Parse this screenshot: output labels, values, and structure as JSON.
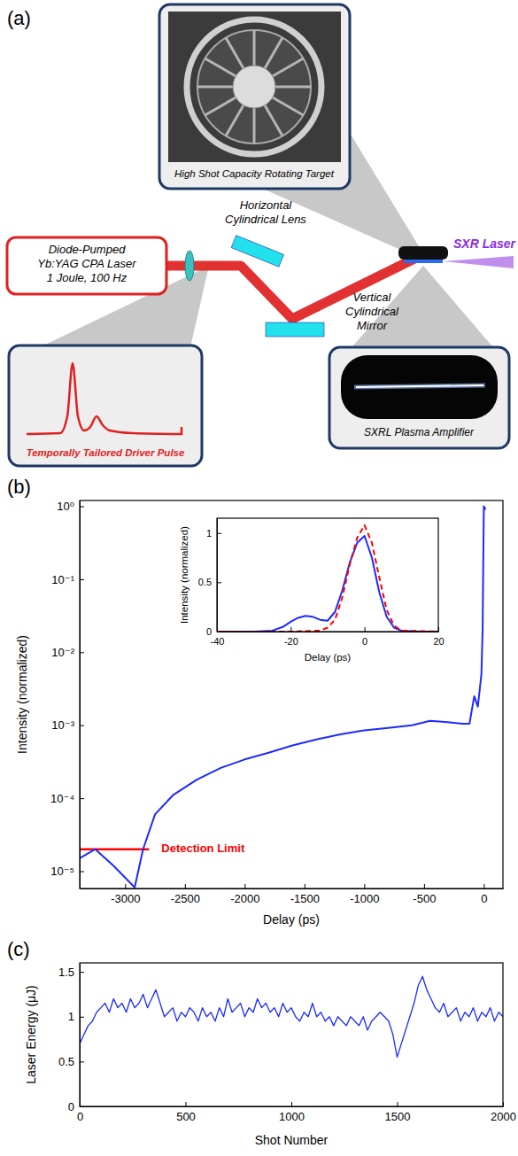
{
  "diagram": {
    "panel": "(a)",
    "laser": [
      "Diode-Pumped",
      "Yb:YAG CPA Laser",
      "1 Joule, 100 Hz"
    ],
    "lens": [
      "Horizontal",
      "Cylindrical Lens"
    ],
    "mirror": [
      "Vertical",
      "Cylindrical",
      "Mirror"
    ],
    "target": "High Shot Capacity Rotating Target",
    "output": "SXR Laser",
    "plasma": "SXRL Plasma Amplifier",
    "pulse": "Temporally Tailored Driver Pulse"
  },
  "chart_data": [
    {
      "type": "line",
      "panel": "(b)",
      "x_label": "Delay (ps)",
      "y_label": "Intensity (normalized)",
      "log": "y",
      "xlim": [
        -3380,
        160
      ],
      "xticks": [
        -3000,
        -2500,
        -2000,
        -1500,
        -1000,
        -500,
        0
      ],
      "ylim": [
        5.8e-06,
        1.2
      ],
      "yticks": [
        {
          "value": 1e-05,
          "label": "10⁻⁵"
        },
        {
          "value": 0.0001,
          "label": "10⁻⁴"
        },
        {
          "value": 0.001,
          "label": "10⁻³"
        },
        {
          "value": 0.01,
          "label": "10⁻²"
        },
        {
          "value": 0.1,
          "label": "10⁻¹"
        },
        {
          "value": 1,
          "label": "10⁰"
        }
      ],
      "series": [
        {
          "color": "#1c2bff",
          "x": [
            -3380,
            -3250,
            -3100,
            -2920,
            -2850,
            -2750,
            -2600,
            -2400,
            -2200,
            -2000,
            -1800,
            -1600,
            -1400,
            -1200,
            -1000,
            -800,
            -600,
            -450,
            -300,
            -180,
            -120,
            -80,
            -50,
            -20,
            -10,
            0,
            15
          ],
          "values": [
            1.5e-05,
            2e-05,
            1.2e-05,
            6e-06,
            2e-05,
            6e-05,
            0.00011,
            0.00018,
            0.00026,
            0.00034,
            0.00042,
            0.00053,
            0.00064,
            0.00075,
            0.00085,
            0.00092,
            0.001,
            0.00115,
            0.0011,
            0.00105,
            0.00105,
            0.0025,
            0.0018,
            0.005,
            0.02,
            1,
            0.9
          ]
        }
      ],
      "annotations": [
        {
          "text": "Detection Limit",
          "x": [
            -3380,
            -2800
          ],
          "y": 2e-05,
          "color": "#ff0000"
        }
      ]
    },
    {
      "type": "line",
      "x_label": "Delay (ps)",
      "y_label": "Intensity (normalized)",
      "xlim": [
        -40,
        20
      ],
      "xticks": [
        -40,
        -20,
        0,
        20
      ],
      "ylim": [
        0,
        1.15
      ],
      "yticks": [
        0,
        0.5,
        1
      ],
      "series": [
        {
          "color": "#1c2bff",
          "x": [
            -40,
            -30,
            -25,
            -22,
            -20,
            -18,
            -16,
            -14,
            -12,
            -10,
            -8,
            -6,
            -4,
            -2,
            0,
            2,
            4,
            6,
            8,
            10,
            15,
            20
          ],
          "values": [
            0,
            0,
            0.01,
            0.05,
            0.1,
            0.14,
            0.16,
            0.15,
            0.12,
            0.11,
            0.2,
            0.42,
            0.7,
            0.9,
            0.97,
            0.75,
            0.4,
            0.15,
            0.04,
            0.01,
            0,
            0
          ]
        },
        {
          "color": "#ff0000",
          "line_style": "dashed",
          "x": [
            -40,
            -20,
            -12,
            -10,
            -8,
            -6,
            -4,
            -2,
            0,
            2,
            4,
            6,
            8,
            10,
            20
          ],
          "values": [
            0,
            0,
            0.01,
            0.04,
            0.12,
            0.35,
            0.68,
            0.95,
            1.08,
            0.9,
            0.55,
            0.22,
            0.06,
            0.01,
            0
          ]
        }
      ]
    },
    {
      "type": "line",
      "panel": "(c)",
      "x_label": "Shot Number",
      "y_label": "Laser Energy (μJ)",
      "xlim": [
        0,
        2000
      ],
      "xticks": [
        0,
        500,
        1000,
        1500,
        2000
      ],
      "ylim": [
        0,
        1.6
      ],
      "yticks": [
        0,
        0.5,
        1,
        1.5
      ],
      "series": [
        {
          "color": "#1c2bff",
          "x": [
            0,
            20,
            40,
            60,
            80,
            100,
            120,
            140,
            160,
            180,
            200,
            220,
            240,
            260,
            280,
            300,
            320,
            340,
            360,
            380,
            400,
            420,
            440,
            460,
            480,
            500,
            520,
            540,
            560,
            580,
            600,
            620,
            640,
            660,
            680,
            700,
            720,
            740,
            760,
            780,
            800,
            820,
            840,
            860,
            880,
            900,
            920,
            940,
            960,
            980,
            1000,
            1020,
            1040,
            1060,
            1080,
            1100,
            1120,
            1140,
            1160,
            1180,
            1200,
            1220,
            1240,
            1260,
            1280,
            1300,
            1320,
            1340,
            1360,
            1380,
            1400,
            1420,
            1440,
            1460,
            1480,
            1500,
            1520,
            1540,
            1560,
            1580,
            1600,
            1620,
            1640,
            1660,
            1680,
            1700,
            1720,
            1740,
            1760,
            1780,
            1800,
            1820,
            1840,
            1860,
            1880,
            1900,
            1920,
            1940,
            1960,
            1980,
            2000
          ],
          "values": [
            0.7,
            0.8,
            0.9,
            0.95,
            1.05,
            1.1,
            1.15,
            1.05,
            1.2,
            1.1,
            1.15,
            1.05,
            1.2,
            1.1,
            1.15,
            1.25,
            1.1,
            1.2,
            1.3,
            1.15,
            1.0,
            1.05,
            1.1,
            0.95,
            1.05,
            1.0,
            1.1,
            1.05,
            0.95,
            1.1,
            1.0,
            1.05,
            0.95,
            1.1,
            1.0,
            1.2,
            1.05,
            1.1,
            1.15,
            1.0,
            1.1,
            1.05,
            1.2,
            1.1,
            1.15,
            1.05,
            1.1,
            1.0,
            1.15,
            1.05,
            1.1,
            1.0,
            0.95,
            1.05,
            1.0,
            1.15,
            1.0,
            1.05,
            0.95,
            1.0,
            0.9,
            1.0,
            0.95,
            0.9,
            1.0,
            0.95,
            0.9,
            1.0,
            0.85,
            0.95,
            1.0,
            1.05,
            1.0,
            0.95,
            0.8,
            0.55,
            0.7,
            0.85,
            1.0,
            1.15,
            1.35,
            1.45,
            1.3,
            1.2,
            1.1,
            1.05,
            1.15,
            1.0,
            1.05,
            1.1,
            0.95,
            1.05,
            1.0,
            1.1,
            0.95,
            1.05,
            1.0,
            1.1,
            0.95,
            1.05,
            1.0
          ]
        }
      ]
    }
  ]
}
